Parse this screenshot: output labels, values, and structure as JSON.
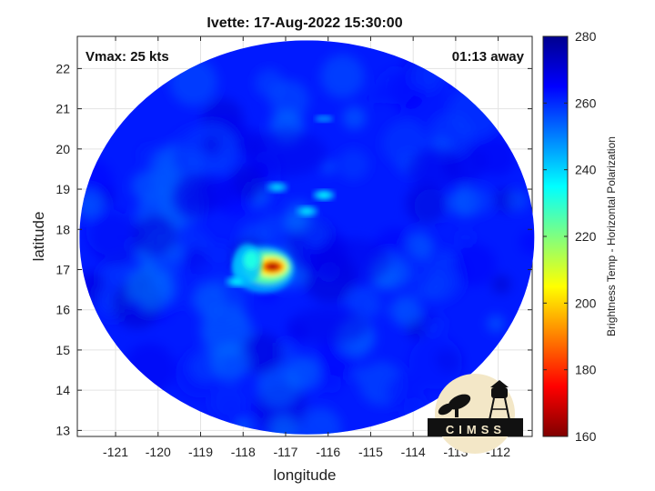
{
  "chart_data": {
    "type": "heatmap",
    "title": "Ivette: 17-Aug-2022 15:30:00",
    "xlabel": "longitude",
    "ylabel": "latitude",
    "xlim": [
      -121.9,
      -111.2
    ],
    "ylim": [
      12.85,
      22.8
    ],
    "xticks": [
      -121,
      -120,
      -119,
      -118,
      -117,
      -116,
      -115,
      -114,
      -113,
      -112
    ],
    "yticks": [
      13,
      14,
      15,
      16,
      17,
      18,
      19,
      20,
      21,
      22
    ],
    "grid": true,
    "swath": {
      "center_lon": -116.5,
      "center_lat": 17.8,
      "radius_lon": 5.35,
      "radius_lat": 4.9
    },
    "colorbar": {
      "label": "Brightness Temp - Horizontal Polarization",
      "range": [
        160,
        280
      ],
      "ticks": [
        160,
        180,
        200,
        220,
        240,
        260,
        280
      ],
      "colormap": "jet"
    },
    "background_temp": 262,
    "features": [
      {
        "lon": -117.35,
        "lat": 17.05,
        "min_temp": 165,
        "name": "core"
      },
      {
        "lon": -117.9,
        "lat": 17.15,
        "min_temp": 232,
        "name": "inner band"
      },
      {
        "lon": -118.15,
        "lat": 16.7,
        "min_temp": 236,
        "name": "southwest band"
      },
      {
        "lon": -116.1,
        "lat": 18.85,
        "min_temp": 236,
        "name": "north band"
      },
      {
        "lon": -116.5,
        "lat": 18.45,
        "min_temp": 238,
        "name": "north band 2"
      },
      {
        "lon": -117.2,
        "lat": 19.05,
        "min_temp": 240,
        "name": "north cell"
      },
      {
        "lon": -116.1,
        "lat": 20.75,
        "min_temp": 250,
        "name": "far north cell"
      }
    ],
    "annotations": {
      "vmax": "Vmax: 25 kts",
      "time_away": "01:13 away"
    }
  },
  "logo": {
    "text": "CIMSS"
  }
}
